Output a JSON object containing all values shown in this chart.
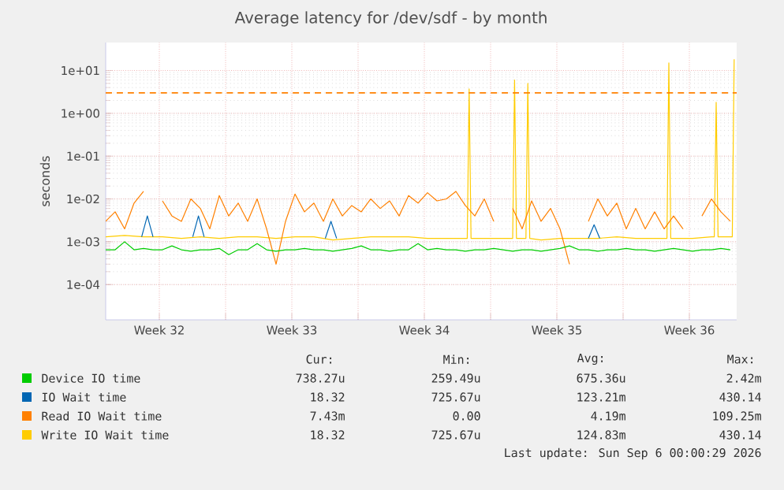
{
  "chart_data": {
    "type": "line",
    "title": "Average latency for /dev/sdf - by month",
    "ylabel": "seconds",
    "x": [
      "2026-08-03T16:00",
      "2026-08-04T04:00",
      "2026-08-04T16:00",
      "2026-08-05T04:00",
      "2026-08-05T16:00",
      "2026-08-06T04:00",
      "2026-08-06T16:00",
      "2026-08-07T04:00",
      "2026-08-07T16:00",
      "2026-08-08T04:00",
      "2026-08-08T16:00",
      "2026-08-09T04:00",
      "2026-08-09T16:00",
      "2026-08-10T04:00",
      "2026-08-10T16:00",
      "2026-08-11T04:00",
      "2026-08-11T16:00",
      "2026-08-12T04:00",
      "2026-08-12T16:00",
      "2026-08-13T04:00",
      "2026-08-13T16:00",
      "2026-08-14T04:00",
      "2026-08-14T16:00",
      "2026-08-15T04:00",
      "2026-08-15T16:00",
      "2026-08-16T04:00",
      "2026-08-16T16:00",
      "2026-08-17T04:00",
      "2026-08-17T16:00",
      "2026-08-18T04:00",
      "2026-08-18T16:00",
      "2026-08-19T04:00",
      "2026-08-19T16:00",
      "2026-08-20T04:00",
      "2026-08-20T16:00",
      "2026-08-21T04:00",
      "2026-08-21T16:00",
      "2026-08-22T04:00",
      "2026-08-22T16:00",
      "2026-08-23T04:00",
      "2026-08-23T16:00",
      "2026-08-24T04:00",
      "2026-08-24T16:00",
      "2026-08-25T04:00",
      "2026-08-25T16:00",
      "2026-08-26T04:00",
      "2026-08-26T16:00",
      "2026-08-27T04:00",
      "2026-08-27T16:00",
      "2026-08-28T04:00",
      "2026-08-28T16:00",
      "2026-08-29T04:00",
      "2026-08-29T16:00",
      "2026-08-30T04:00",
      "2026-08-30T16:00",
      "2026-08-31T04:00",
      "2026-08-31T16:00",
      "2026-09-01T04:00",
      "2026-09-01T16:00",
      "2026-09-02T04:00",
      "2026-09-02T16:00",
      "2026-09-03T04:00",
      "2026-09-03T16:00",
      "2026-09-04T04:00",
      "2026-09-04T16:00",
      "2026-09-05T04:00",
      "2026-09-05T16:00"
    ],
    "series": [
      {
        "name": "Device IO time",
        "color": "#00cc00",
        "values": [
          0.00065,
          0.00065,
          0.001,
          0.00065,
          0.0007,
          0.00065,
          0.00065,
          0.0008,
          0.00065,
          0.0006,
          0.00065,
          0.00065,
          0.0007,
          0.0005,
          0.00065,
          0.00065,
          0.0009,
          0.00065,
          0.0006,
          0.00065,
          0.00065,
          0.0007,
          0.00065,
          0.00065,
          0.0006,
          0.00065,
          0.0007,
          0.0008,
          0.00065,
          0.00065,
          0.0006,
          0.00065,
          0.00065,
          0.0009,
          0.00065,
          0.0007,
          0.00065,
          0.00065,
          0.0006,
          0.00065,
          0.00065,
          0.0007,
          0.00065,
          0.0006,
          0.00065,
          0.00065,
          0.0006,
          0.00065,
          0.0007,
          0.0008,
          0.00065,
          0.00065,
          0.0006,
          0.00065,
          0.00065,
          0.0007,
          0.00065,
          0.00065,
          0.0006,
          0.00065,
          0.0007,
          0.00065,
          0.0006,
          0.00065,
          0.00065,
          0.0007,
          0.00065
        ]
      },
      {
        "name": "IO Wait time",
        "color": "#0066b3",
        "x": [
          "2026-08-05T13:36",
          "2026-08-05T20:48",
          "2026-08-06T04:00",
          "2026-08-06T06:24",
          "2026-08-08T06:24",
          "2026-08-08T13:36",
          "2026-08-08T20:48",
          "2026-08-08T23:12",
          "2026-08-15T06:24",
          "2026-08-15T13:36",
          "2026-08-15T20:48",
          "2026-08-15T23:12",
          "2026-08-29T04:00",
          "2026-08-29T11:12",
          "2026-08-29T18:24"
        ],
        "values": [
          0.0013,
          0.004,
          0.0013,
          null,
          0.0013,
          0.004,
          0.0013,
          null,
          0.0012,
          0.003,
          0.0012,
          null,
          0.0012,
          0.0025,
          0.0012
        ]
      },
      {
        "name": "Read IO Wait time",
        "color": "#ff8000",
        "values": [
          0.003,
          0.005,
          0.002,
          0.008,
          0.015,
          null,
          0.009,
          0.004,
          0.003,
          0.01,
          0.006,
          0.002,
          0.012,
          0.004,
          0.008,
          0.003,
          0.01,
          0.002,
          0.0003,
          0.003,
          0.013,
          0.005,
          0.008,
          0.003,
          0.01,
          0.004,
          0.007,
          0.005,
          0.01,
          0.006,
          0.009,
          0.004,
          0.012,
          0.008,
          0.014,
          0.009,
          0.01,
          0.015,
          0.007,
          0.004,
          0.01,
          0.003,
          null,
          0.006,
          0.002,
          0.009,
          0.003,
          0.006,
          0.002,
          0.0003,
          null,
          0.003,
          0.01,
          0.004,
          0.008,
          0.002,
          0.006,
          0.002,
          0.005,
          0.002,
          0.004,
          0.002,
          null,
          0.004,
          0.01,
          0.005,
          0.003
        ]
      },
      {
        "name": "Write IO Wait time",
        "color": "#ffcc00",
        "x": [
          "2026-08-03T16:00",
          "2026-08-04T16:00",
          "2026-08-05T16:00",
          "2026-08-06T16:00",
          "2026-08-07T16:00",
          "2026-08-08T16:00",
          "2026-08-09T16:00",
          "2026-08-10T16:00",
          "2026-08-11T16:00",
          "2026-08-12T16:00",
          "2026-08-13T16:00",
          "2026-08-14T16:00",
          "2026-08-15T16:00",
          "2026-08-16T16:00",
          "2026-08-17T16:00",
          "2026-08-18T16:00",
          "2026-08-19T16:00",
          "2026-08-20T16:00",
          "2026-08-21T16:00",
          "2026-08-22T16:00",
          "2026-08-22T18:24",
          "2026-08-22T20:48",
          "2026-08-22T23:12",
          "2026-08-23T16:00",
          "2026-08-24T16:00",
          "2026-08-25T04:00",
          "2026-08-25T06:24",
          "2026-08-25T08:48",
          "2026-08-25T20:48",
          "2026-08-25T23:12",
          "2026-08-26T01:36",
          "2026-08-26T16:00",
          "2026-08-27T16:00",
          "2026-08-28T16:00",
          "2026-08-29T16:00",
          "2026-08-30T16:00",
          "2026-08-31T16:00",
          "2026-09-01T16:00",
          "2026-09-02T07:36",
          "2026-09-02T10:00",
          "2026-09-02T12:24",
          "2026-09-02T16:00",
          "2026-09-03T16:00",
          "2026-09-04T16:00",
          "2026-09-04T19:36",
          "2026-09-04T22:00",
          "2026-09-05T00:24",
          "2026-09-05T16:00",
          "2026-09-05T18:24",
          "2026-09-05T20:48"
        ],
        "values": [
          0.0013,
          0.0014,
          0.0013,
          0.0013,
          0.0012,
          0.0013,
          0.0012,
          0.0013,
          0.0013,
          0.0012,
          0.0013,
          0.0013,
          0.0011,
          0.0012,
          0.0013,
          0.0013,
          0.0013,
          0.0012,
          0.0012,
          0.0012,
          0.0012,
          3.7,
          0.0012,
          0.0012,
          0.0012,
          0.0012,
          6,
          0.0012,
          0.0012,
          5,
          0.0012,
          0.0011,
          0.0012,
          0.0012,
          0.0012,
          0.0013,
          0.0012,
          0.0012,
          0.0012,
          15,
          0.0012,
          0.0012,
          0.0012,
          0.0013,
          0.0013,
          1.8,
          0.0013,
          0.0013,
          0.0013,
          18.32
        ]
      }
    ],
    "xlim": [
      "2026-08-03T16:00",
      "2026-09-06T00:00"
    ],
    "ylim": [
      1.5e-05,
      45
    ],
    "log": "y",
    "grid": true,
    "legend": "bottom",
    "xticks": [
      {
        "value": "2026-08-06T12:00",
        "label": "Week 32"
      },
      {
        "value": "2026-08-10",
        "label": null
      },
      {
        "value": "2026-08-13T12:00",
        "label": "Week 33"
      },
      {
        "value": "2026-08-17",
        "label": null
      },
      {
        "value": "2026-08-20T12:00",
        "label": "Week 34"
      },
      {
        "value": "2026-08-24",
        "label": null
      },
      {
        "value": "2026-08-27T12:00",
        "label": "Week 35"
      },
      {
        "value": "2026-08-31",
        "label": null
      },
      {
        "value": "2026-09-03T12:00",
        "label": "Week 36"
      }
    ],
    "yticks": [
      {
        "value": 0.0001,
        "label": "1e-04"
      },
      {
        "value": 0.001,
        "label": "1e-03"
      },
      {
        "value": 0.01,
        "label": "1e-02"
      },
      {
        "value": 0.1,
        "label": "1e-01"
      },
      {
        "value": 1,
        "label": "1e+00"
      },
      {
        "value": 10,
        "label": "1e+01"
      }
    ],
    "ref_lines": [
      {
        "axis": "y",
        "value": 3,
        "color": "#ff8000",
        "line_style": "dashed"
      }
    ],
    "annotations": [
      "Cur:",
      "Min:",
      "Avg:",
      "Max:",
      "738.27u",
      "259.49u",
      "675.36u",
      "2.42m",
      "18.32",
      "725.67u",
      "123.21m",
      "430.14",
      "7.43m",
      "0.00",
      "4.19m",
      "109.25m",
      "18.32",
      "725.67u",
      "124.83m",
      "430.14",
      "Last update: Sun Sep  6 00:00:29 2026"
    ]
  }
}
